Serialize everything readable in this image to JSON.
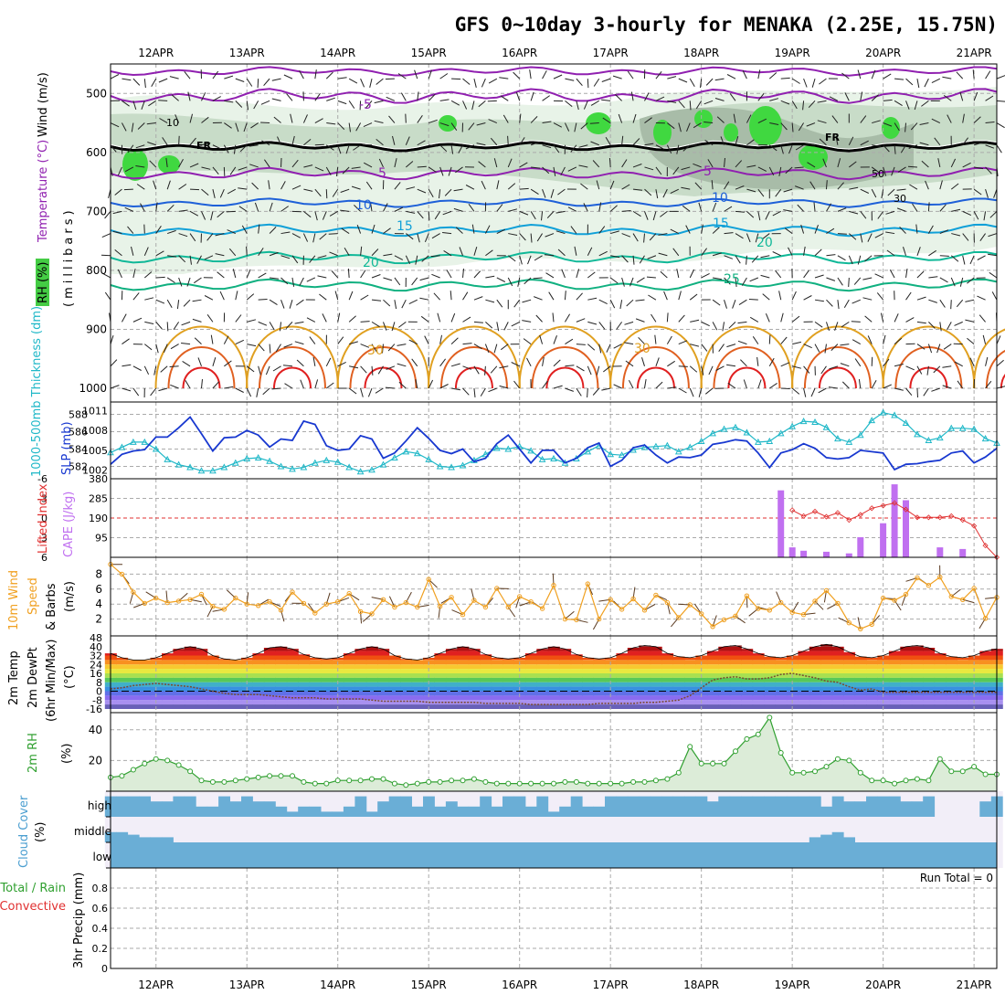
{
  "title": "GFS 0~10day 3-hourly for MENAKA (2.25E, 15.75N)",
  "dates": [
    "12APR",
    "13APR",
    "14APR",
    "15APR",
    "16APR",
    "17APR",
    "18APR",
    "19APR",
    "20APR",
    "21APR"
  ],
  "colors": {
    "temp_5": "#9020b0",
    "temp_10": "#1e60d8",
    "temp_15": "#10a0d8",
    "temp_20": "#10b898",
    "temp_25": "#10b080",
    "temp_30": "#e0a020",
    "temp_hot": "#e06020",
    "temp_red": "#e02020",
    "freezing": "#000000",
    "rh_light": "#e8f3e8",
    "rh_mid": "#c8dcc8",
    "rh_dark": "#a8bca8",
    "rh_bright": "#40d840",
    "thickness": "#20b8c8",
    "slp": "#1838d0",
    "cape": "#c070f0",
    "lifted": "#e03030",
    "wind10": "#f0a020",
    "rh2m": "#30a030",
    "cloud": "#6aaed6"
  },
  "panels": {
    "upper_air": {
      "ylabel_wind": "Wind (m/s)",
      "ylabel_temp": "Temperature (°C)",
      "ylabel_p": "(millibars)",
      "ylabel_rh": "RH (%)",
      "yticks": [
        "500",
        "600",
        "700",
        "800",
        "900",
        "1000"
      ],
      "labels": {
        "fr": "FR",
        "t_neg5": "-5",
        "t5": "5",
        "t10": "10",
        "t15": "15",
        "t20": "20",
        "t25": "25",
        "t30": "30",
        "rh10": "10",
        "rh30": "30",
        "rh50": "50"
      }
    },
    "thickness_slp": {
      "ylabel_thick": "1000-500mb Thickness (dm)",
      "ylabel_slp": "SLP (mb)",
      "yticks_left": [
        "588",
        "586",
        "584",
        "582"
      ],
      "yticks_right": [
        "1011",
        "1008",
        "1005",
        "1002"
      ]
    },
    "cape_li": {
      "ylabel_li": "Lifted Index",
      "ylabel_cape": "CAPE (J/kg)",
      "yticks_left": [
        "-6",
        "-3",
        "0",
        "3",
        "6"
      ],
      "yticks_right": [
        "380",
        "285",
        "190",
        "95"
      ]
    },
    "wind10m": {
      "ylabel_a": "10m Wind",
      "ylabel_b": "Speed",
      "ylabel_c": "& Barbs",
      "unit": "(m/s)",
      "yticks": [
        "8",
        "6",
        "4",
        "2"
      ]
    },
    "temp2m": {
      "ylabel_a": "2m Temp",
      "ylabel_b": "2m DewPt",
      "ylabel_c": "(6hr Min/Max)",
      "unit": "(°C)",
      "yticks": [
        "48",
        "40",
        "32",
        "24",
        "16",
        "8",
        "0",
        "-8",
        "-16"
      ]
    },
    "rh2m": {
      "ylabel": "2m RH",
      "unit": "(%)",
      "yticks": [
        "40",
        "20"
      ]
    },
    "cloud": {
      "ylabel": "Cloud Cover",
      "unit": "(%)",
      "levels": [
        "high",
        "middle",
        "low"
      ]
    },
    "precip": {
      "ylabel_a": "Total / Rain",
      "ylabel_b": "Convective",
      "ylabel_c": "3hr Precip (mm)",
      "run_total": "Run Total = 0",
      "yticks": [
        "0.8",
        "0.6",
        "0.4",
        "0.2",
        "0"
      ]
    }
  },
  "chart_data": {
    "type": "line",
    "x": [
      "11APR 12Z",
      "11APR 15Z",
      "11APR 18Z",
      "11APR 21Z",
      "12APR 00Z",
      "12APR 03Z",
      "12APR 06Z",
      "12APR 09Z",
      "12APR 12Z",
      "12APR 15Z",
      "12APR 18Z",
      "12APR 21Z",
      "13APR 00Z",
      "13APR 03Z",
      "13APR 06Z",
      "13APR 09Z",
      "13APR 12Z",
      "13APR 15Z",
      "13APR 18Z",
      "13APR 21Z",
      "14APR 00Z",
      "14APR 03Z",
      "14APR 06Z",
      "14APR 09Z",
      "14APR 12Z",
      "14APR 15Z",
      "14APR 18Z",
      "14APR 21Z",
      "15APR 00Z",
      "15APR 03Z",
      "15APR 06Z",
      "15APR 09Z",
      "15APR 12Z",
      "15APR 15Z",
      "15APR 18Z",
      "15APR 21Z",
      "16APR 00Z",
      "16APR 03Z",
      "16APR 06Z",
      "16APR 09Z",
      "16APR 12Z",
      "16APR 15Z",
      "16APR 18Z",
      "16APR 21Z",
      "17APR 00Z",
      "17APR 03Z",
      "17APR 06Z",
      "17APR 09Z",
      "17APR 12Z",
      "17APR 15Z",
      "17APR 18Z",
      "17APR 21Z",
      "18APR 00Z",
      "18APR 03Z",
      "18APR 06Z",
      "18APR 09Z",
      "18APR 12Z",
      "18APR 15Z",
      "18APR 18Z",
      "18APR 21Z",
      "19APR 00Z",
      "19APR 03Z",
      "19APR 06Z",
      "19APR 09Z",
      "19APR 12Z",
      "19APR 15Z",
      "19APR 18Z",
      "19APR 21Z",
      "20APR 00Z",
      "20APR 03Z",
      "20APR 06Z",
      "20APR 09Z",
      "20APR 12Z",
      "20APR 15Z",
      "20APR 18Z",
      "20APR 21Z",
      "21APR 00Z",
      "21APR 03Z",
      "21APR 06Z"
    ],
    "thickness_dm": [
      583.6,
      584.2,
      584.8,
      584.8,
      584.0,
      582.8,
      582.2,
      581.9,
      581.5,
      581.5,
      581.9,
      582.4,
      582.9,
      583.0,
      582.6,
      582.0,
      581.7,
      581.9,
      582.4,
      582.7,
      582.5,
      581.9,
      581.4,
      581.6,
      582.2,
      583.0,
      583.7,
      583.5,
      582.8,
      582.0,
      581.9,
      582.1,
      582.7,
      583.4,
      584.1,
      584.0,
      584.3,
      583.8,
      582.8,
      582.9,
      582.4,
      582.9,
      583.7,
      584.4,
      583.4,
      583.3,
      583.9,
      584.2,
      584.3,
      584.4,
      583.7,
      584.2,
      584.9,
      585.8,
      586.3,
      586.5,
      585.9,
      584.8,
      584.9,
      585.8,
      586.6,
      587.2,
      587.1,
      586.5,
      585.2,
      584.8,
      585.6,
      587.3,
      588.2,
      587.9,
      587.0,
      585.7,
      585.0,
      585.3,
      586.4,
      586.4,
      586.3,
      585.2,
      584.7
    ],
    "slp_mb": [
      1002.9,
      1004.4,
      1004.9,
      1005.1,
      1007.0,
      1007.0,
      1008.4,
      1010.0,
      1007.5,
      1004.9,
      1006.9,
      1007.0,
      1008.0,
      1007.3,
      1005.5,
      1006.7,
      1006.5,
      1009.4,
      1008.9,
      1005.7,
      1005.0,
      1005.2,
      1007.2,
      1006.7,
      1003.8,
      1004.6,
      1006.4,
      1008.4,
      1006.8,
      1005.0,
      1004.5,
      1005.2,
      1003.3,
      1003.8,
      1006.0,
      1007.3,
      1005.2,
      1003.1,
      1005.0,
      1005.0,
      1003.1,
      1003.8,
      1005.4,
      1006.1,
      1002.6,
      1003.5,
      1005.4,
      1005.8,
      1004.3,
      1003.1,
      1004.0,
      1003.9,
      1004.3,
      1005.9,
      1006.2,
      1006.6,
      1006.4,
      1004.6,
      1002.4,
      1004.6,
      1005.1,
      1006.0,
      1005.3,
      1003.9,
      1003.7,
      1003.9,
      1005.0,
      1004.8,
      1004.6,
      1002.1,
      1002.9,
      1003.0,
      1003.3,
      1003.5,
      1004.6,
      1004.9,
      1003.1,
      1004.0,
      1005.3
    ],
    "cape_jkg": [
      0,
      0,
      0,
      0,
      0,
      0,
      0,
      0,
      0,
      0,
      0,
      0,
      0,
      0,
      0,
      0,
      0,
      0,
      0,
      0,
      0,
      0,
      0,
      0,
      0,
      0,
      0,
      0,
      0,
      0,
      0,
      0,
      0,
      0,
      0,
      0,
      0,
      0,
      0,
      0,
      0,
      0,
      0,
      0,
      0,
      0,
      0,
      0,
      0,
      0,
      0,
      0,
      0,
      0,
      0,
      0,
      0,
      0,
      0,
      324,
      48,
      32,
      0,
      27,
      0,
      19,
      97,
      0,
      165,
      353,
      276,
      0,
      0,
      48,
      0,
      40,
      0,
      0,
      0
    ],
    "lifted_index": [
      null,
      null,
      null,
      null,
      null,
      null,
      null,
      null,
      null,
      null,
      null,
      null,
      null,
      null,
      null,
      null,
      null,
      null,
      null,
      null,
      null,
      null,
      null,
      null,
      null,
      null,
      null,
      null,
      null,
      null,
      null,
      null,
      null,
      null,
      null,
      null,
      null,
      null,
      null,
      null,
      null,
      null,
      null,
      null,
      null,
      null,
      null,
      null,
      null,
      null,
      null,
      null,
      null,
      null,
      null,
      null,
      null,
      null,
      null,
      null,
      -1.2,
      -0.3,
      -1.0,
      -0.2,
      -0.8,
      0.3,
      -0.5,
      -1.5,
      -1.9,
      -2.3,
      -1.3,
      -0.1,
      -0.1,
      -0.1,
      -0.3,
      0.3,
      1.2,
      4.2,
      6.0
    ],
    "wind10m_ms": [
      9.3,
      8.0,
      5.6,
      4.1,
      4.8,
      4.2,
      4.4,
      4.6,
      5.3,
      3.7,
      3.3,
      4.8,
      4.0,
      3.8,
      4.3,
      3.2,
      5.6,
      4.1,
      2.8,
      4.0,
      4.3,
      5.4,
      3.0,
      2.7,
      4.6,
      3.6,
      4.2,
      3.6,
      7.3,
      3.7,
      4.9,
      2.6,
      4.5,
      3.6,
      6.1,
      3.6,
      5.0,
      4.3,
      3.4,
      6.5,
      2.0,
      1.9,
      6.7,
      2.0,
      4.6,
      3.3,
      4.7,
      3.2,
      5.2,
      4.2,
      2.2,
      3.9,
      2.7,
      1.0,
      1.9,
      2.4,
      5.1,
      3.4,
      3.2,
      4.2,
      2.9,
      2.6,
      4.4,
      5.8,
      4.1,
      1.5,
      0.7,
      1.3,
      4.8,
      4.5,
      5.3,
      7.5,
      6.5,
      7.6,
      5.0,
      4.6,
      6.1,
      2.1,
      4.9
    ],
    "rh2m_pct": [
      9,
      10,
      14,
      18,
      21,
      20,
      17,
      13,
      7,
      6,
      6,
      7,
      8,
      9,
      10,
      10,
      10,
      6,
      5,
      5,
      7,
      7,
      7,
      8,
      8,
      5,
      4,
      5,
      6,
      6,
      7,
      7,
      8,
      6,
      5,
      5,
      5,
      5,
      5,
      5,
      6,
      6,
      5,
      5,
      5,
      5,
      6,
      6,
      7,
      8,
      12,
      29,
      18,
      18,
      18,
      26,
      34,
      37,
      48,
      25,
      12,
      12,
      13,
      16,
      21,
      20,
      12,
      7,
      7,
      5,
      7,
      8,
      7,
      21,
      13,
      13,
      16,
      11,
      11
    ],
    "temp2m_c": [
      34,
      30,
      28,
      28,
      30,
      34,
      38,
      40,
      38,
      32,
      29,
      28,
      30,
      34,
      39,
      40,
      38,
      33,
      30,
      29,
      30,
      34,
      38,
      40,
      38,
      32,
      29,
      28,
      30,
      34,
      38,
      40,
      38,
      33,
      30,
      29,
      30,
      34,
      38,
      40,
      38,
      33,
      30,
      29,
      30,
      34,
      39,
      41,
      40,
      34,
      31,
      30,
      32,
      36,
      40,
      41,
      38,
      34,
      31,
      30,
      32,
      36,
      40,
      42,
      40,
      35,
      31,
      30,
      32,
      36,
      40,
      41,
      39,
      34,
      31,
      30,
      32,
      36,
      38
    ],
    "dewpt2m_c": [
      2,
      3,
      5,
      6,
      7,
      6,
      5,
      4,
      2,
      0,
      -2,
      -3,
      -3,
      -3,
      -4,
      -5,
      -6,
      -6,
      -6,
      -7,
      -7,
      -7,
      -7,
      -8,
      -9,
      -9,
      -9,
      -9,
      -10,
      -10,
      -10,
      -10,
      -10,
      -11,
      -11,
      -11,
      -11,
      -12,
      -12,
      -12,
      -12,
      -12,
      -12,
      -11,
      -11,
      -11,
      -11,
      -10,
      -10,
      -9,
      -8,
      -4,
      3,
      10,
      12,
      13,
      11,
      11,
      12,
      15,
      16,
      14,
      12,
      9,
      8,
      4,
      1,
      2,
      -1,
      -1,
      -1,
      -1,
      -1,
      -1,
      -1,
      -1,
      -1,
      -1,
      -1
    ],
    "cloud_cover_pct": {
      "high": [
        80,
        80,
        80,
        80,
        60,
        60,
        80,
        80,
        40,
        40,
        80,
        60,
        80,
        60,
        60,
        40,
        20,
        40,
        40,
        20,
        20,
        40,
        80,
        20,
        60,
        80,
        80,
        40,
        80,
        40,
        60,
        40,
        40,
        80,
        40,
        80,
        80,
        40,
        80,
        20,
        40,
        80,
        40,
        40,
        80,
        80,
        80,
        80,
        80,
        80,
        80,
        80,
        80,
        60,
        80,
        80,
        80,
        80,
        80,
        80,
        80,
        80,
        80,
        40,
        80,
        60,
        60,
        80,
        80,
        80,
        60,
        60,
        80,
        0,
        0,
        0,
        0,
        60,
        80
      ],
      "middle": [
        40,
        40,
        30,
        20,
        20,
        20,
        0,
        0,
        0,
        0,
        0,
        0,
        0,
        0,
        0,
        0,
        0,
        0,
        0,
        0,
        0,
        0,
        0,
        0,
        0,
        0,
        0,
        0,
        0,
        0,
        0,
        0,
        0,
        0,
        0,
        0,
        0,
        0,
        0,
        0,
        0,
        0,
        0,
        0,
        0,
        0,
        0,
        0,
        0,
        0,
        0,
        0,
        0,
        0,
        0,
        0,
        0,
        0,
        0,
        0,
        0,
        0,
        20,
        30,
        40,
        20,
        0,
        0,
        0,
        0,
        0,
        0,
        0,
        0,
        0,
        0,
        0,
        0,
        0
      ],
      "low": [
        0,
        0,
        0,
        0,
        0,
        0,
        0,
        0,
        0,
        0,
        0,
        0,
        0,
        0,
        0,
        0,
        0,
        0,
        0,
        0,
        0,
        0,
        0,
        0,
        0,
        0,
        0,
        0,
        0,
        0,
        0,
        0,
        0,
        0,
        0,
        0,
        0,
        0,
        0,
        0,
        0,
        0,
        0,
        0,
        0,
        0,
        0,
        0,
        0,
        0,
        0,
        0,
        0,
        0,
        0,
        0,
        0,
        0,
        0,
        0,
        0,
        0,
        0,
        0,
        0,
        0,
        0,
        0,
        0,
        0,
        0,
        0,
        0,
        0,
        0,
        0,
        0,
        0,
        0
      ]
    },
    "precip3h_mm": [
      0,
      0,
      0,
      0,
      0,
      0,
      0,
      0,
      0,
      0,
      0,
      0,
      0,
      0,
      0,
      0,
      0,
      0,
      0,
      0,
      0,
      0,
      0,
      0,
      0,
      0,
      0,
      0,
      0,
      0,
      0,
      0,
      0,
      0,
      0,
      0,
      0,
      0,
      0,
      0,
      0,
      0,
      0,
      0,
      0,
      0,
      0,
      0,
      0,
      0,
      0,
      0,
      0,
      0,
      0,
      0,
      0,
      0,
      0,
      0,
      0,
      0,
      0,
      0,
      0,
      0,
      0,
      0,
      0,
      0,
      0,
      0,
      0,
      0,
      0,
      0,
      0,
      0,
      0
    ],
    "upper_air_temp_isotherms_c": [
      -5,
      5,
      10,
      15,
      20,
      25,
      30
    ],
    "freezing_level_mb_approx": 590,
    "ylim": {
      "pressure_mb": [
        1000,
        450
      ],
      "thickness_dm": [
        581,
        589
      ],
      "slp_mb": [
        1001,
        1012
      ],
      "lifted_index": [
        6,
        -6
      ],
      "cape_jkg": [
        0,
        380
      ],
      "wind10m_ms": [
        0,
        10
      ],
      "temp2m_c": [
        -16,
        48
      ],
      "rh2m_pct": [
        0,
        50
      ],
      "precip3h_mm": [
        0,
        1
      ]
    }
  }
}
